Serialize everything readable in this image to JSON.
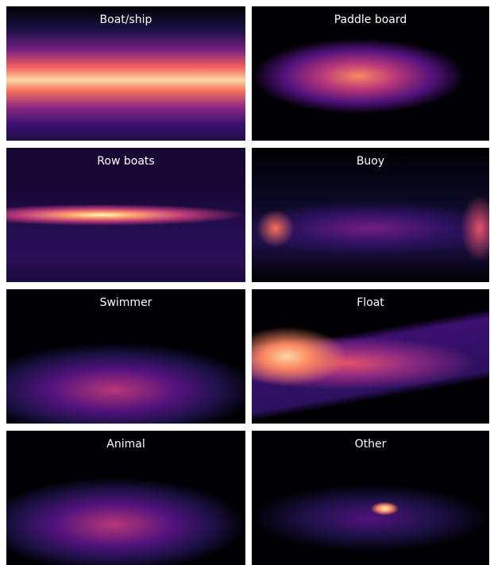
{
  "panels": [
    {
      "title": "Boat/ship"
    },
    {
      "title": "Paddle board"
    },
    {
      "title": "Row boats"
    },
    {
      "title": "Buoy"
    },
    {
      "title": "Swimmer"
    },
    {
      "title": "Float"
    },
    {
      "title": "Animal"
    },
    {
      "title": "Other"
    }
  ]
}
